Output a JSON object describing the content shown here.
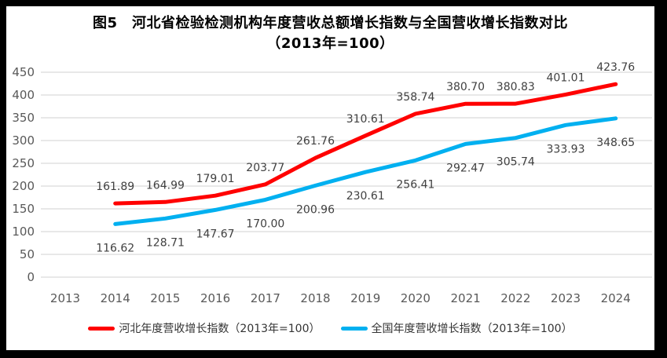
{
  "chart_data": {
    "type": "line",
    "title": "图5　河北省检验检测机构年度营收总额增长指数与全国营收增长指数对比",
    "subtitle": "（2013年=100）",
    "categories": [
      "2013",
      "2014",
      "2015",
      "2016",
      "2017",
      "2018",
      "2019",
      "2020",
      "2021",
      "2022",
      "2023",
      "2024"
    ],
    "series": [
      {
        "name": "河北年度营收增长指数（2013年=100）",
        "color": "#FF0000",
        "start_category_index": 1,
        "values": [
          161.89,
          164.99,
          179.01,
          203.77,
          261.76,
          310.61,
          358.74,
          380.7,
          380.83,
          401.01,
          423.76
        ],
        "labels": [
          "161.89",
          "164.99",
          "179.01",
          "203.77",
          "261.76",
          "310.61",
          "358.74",
          "380.70",
          "380.83",
          "401.01",
          "423.76"
        ],
        "label_position": "above"
      },
      {
        "name": "全国年度营收增长指数（2013年=100）",
        "color": "#00B0F0",
        "start_category_index": 1,
        "values": [
          116.62,
          128.71,
          147.67,
          170.0,
          200.96,
          230.61,
          256.41,
          292.47,
          305.74,
          333.93,
          348.65
        ],
        "labels": [
          "116.62",
          "128.71",
          "147.67",
          "170.00",
          "200.96",
          "230.61",
          "256.41",
          "292.47",
          "305.74",
          "333.93",
          "348.65"
        ],
        "label_position": "below"
      }
    ],
    "ylim": [
      0,
      450
    ],
    "ytick_step": 50,
    "yticks": [
      0,
      50,
      100,
      150,
      200,
      250,
      300,
      350,
      400,
      450
    ],
    "grid": "horizontal",
    "legend_position": "bottom",
    "colors": {
      "gridline": "#D9D9D9",
      "axis_text": "#595959",
      "data_label_text": "#404040",
      "frame_border": "#000000"
    }
  }
}
